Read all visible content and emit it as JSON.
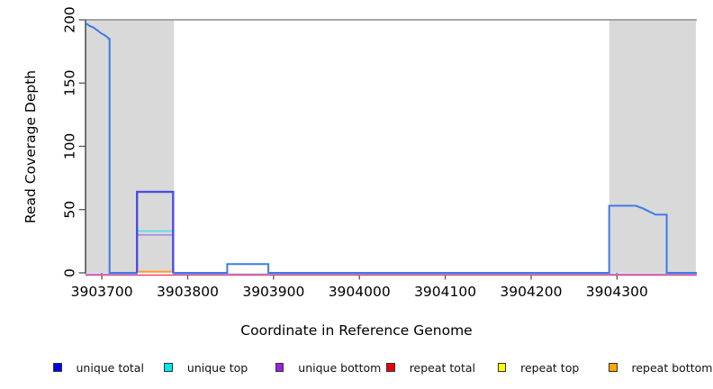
{
  "axes": {
    "x_label": "Coordinate in Reference Genome",
    "y_label": "Read Coverage Depth"
  },
  "chart_data": {
    "type": "line",
    "title": "",
    "xlabel": "Coordinate in Reference Genome",
    "ylabel": "Read Coverage Depth",
    "xlim": [
      3903681,
      3904393
    ],
    "ylim": [
      0,
      200
    ],
    "x_ticks": [
      3903700,
      3903800,
      3903900,
      3904000,
      3904100,
      3904200,
      3904300
    ],
    "y_ticks": [
      0,
      50,
      100,
      150,
      200
    ],
    "grid": false,
    "legend_position": "bottom-horizontal",
    "top_boundary_line_y": 200,
    "shaded_region_color": "#d9d9d9",
    "top_boundary_line_color": "#8c8c8c",
    "shaded_regions": [
      {
        "start": 3903681,
        "end": 3903784
      },
      {
        "start": 3904291,
        "end": 3904392
      }
    ],
    "series": [
      {
        "name": "unique total",
        "legend_color": "#0000E8",
        "dy": 0,
        "segments": [
          {
            "color": "#3E7BE9",
            "width": 2,
            "points": [
              [
                3903682,
                197
              ],
              [
                3903684,
                196
              ],
              [
                3903686,
                195
              ],
              [
                3903690,
                194
              ],
              [
                3903692,
                193
              ],
              [
                3903694,
                192
              ],
              [
                3903696,
                191
              ],
              [
                3903698,
                190
              ],
              [
                3903700,
                189
              ],
              [
                3903703,
                188
              ],
              [
                3903705,
                187
              ],
              [
                3903707,
                186
              ],
              [
                3903708,
                185
              ],
              [
                3903709,
                185
              ],
              [
                3903709,
                0
              ],
              [
                3903741,
                0
              ]
            ]
          },
          {
            "color": "#4D4DE2",
            "width": 2.4,
            "points": [
              [
                3903741,
                0
              ],
              [
                3903741,
                64
              ],
              [
                3903783,
                64
              ],
              [
                3903783,
                0
              ]
            ]
          },
          {
            "color": "#3E7BE9",
            "width": 2,
            "points": [
              [
                3903783,
                0
              ],
              [
                3903846,
                0
              ],
              [
                3903846,
                7
              ],
              [
                3903894,
                7
              ],
              [
                3903894,
                0
              ],
              [
                3904291,
                0
              ],
              [
                3904291,
                53
              ],
              [
                3904322,
                53
              ],
              [
                3904326,
                52
              ],
              [
                3904330,
                51
              ],
              [
                3904333,
                50
              ],
              [
                3904336,
                49
              ],
              [
                3904339,
                48
              ],
              [
                3904342,
                47
              ],
              [
                3904345,
                46
              ],
              [
                3904358,
                46
              ],
              [
                3904358,
                0
              ],
              [
                3904393,
                0
              ]
            ]
          }
        ]
      },
      {
        "name": "unique top",
        "legend_color": "#00E8E8",
        "dy": 0,
        "segments": [
          {
            "color": "#55DFE6",
            "width": 1.8,
            "points": [
              [
                3903742,
                33
              ],
              [
                3903782,
                33
              ]
            ]
          }
        ]
      },
      {
        "name": "unique bottom",
        "legend_color": "#9B1FE8",
        "dy": 1.5,
        "segments": [
          {
            "color": "#A583E8",
            "width": 1.5,
            "points": [
              [
                3903681,
                0
              ],
              [
                3903741,
                0
              ],
              [
                3903741,
                31
              ],
              [
                3903783,
                31
              ],
              [
                3903783,
                0
              ],
              [
                3904393,
                0
              ]
            ]
          }
        ]
      },
      {
        "name": "repeat total",
        "legend_color": "#E8000F",
        "dy": 2.5,
        "segments": [
          {
            "color": "#F2455E",
            "width": 1.5,
            "points": [
              [
                3903681,
                0
              ],
              [
                3904393,
                0
              ]
            ]
          }
        ]
      },
      {
        "name": "repeat top",
        "legend_color": "#FFFF00",
        "dy": 0,
        "segments": []
      },
      {
        "name": "repeat bottom",
        "legend_color": "#FFA500",
        "dy": 0,
        "segments": [
          {
            "color": "#FF9E2C",
            "width": 2,
            "points": [
              [
                3903743,
                1
              ],
              [
                3903781,
                1
              ]
            ]
          }
        ]
      }
    ]
  },
  "legend": {
    "items": [
      {
        "label": "unique total",
        "color": "#0000E8"
      },
      {
        "label": "unique top",
        "color": "#00E8E8"
      },
      {
        "label": "unique bottom",
        "color": "#9B1FE8"
      },
      {
        "label": "repeat total",
        "color": "#E8000F"
      },
      {
        "label": "repeat top",
        "color": "#FFFF00"
      },
      {
        "label": "repeat bottom",
        "color": "#FFA500"
      }
    ]
  }
}
